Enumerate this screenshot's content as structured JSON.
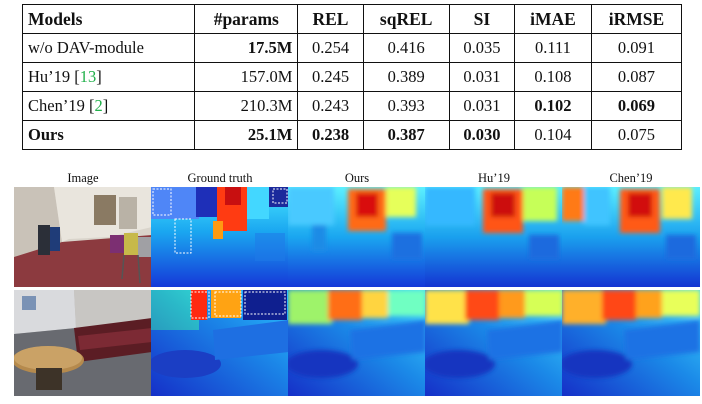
{
  "table": {
    "headers": [
      "Models",
      "#params",
      "REL",
      "sqREL",
      "SI",
      "iMAE",
      "iRMSE"
    ],
    "rows": [
      {
        "model": "w/o DAV-module",
        "cite": "",
        "params": "17.5M",
        "rel": "0.254",
        "sqrel": "0.416",
        "si": "0.035",
        "imae": "0.111",
        "irmse": "0.091"
      },
      {
        "model": "Hu’19 [",
        "cite": "13",
        "params": "157.0M",
        "rel": "0.245",
        "sqrel": "0.389",
        "si": "0.031",
        "imae": "0.108",
        "irmse": "0.087"
      },
      {
        "model": "Chen’19 [",
        "cite": "2",
        "params": "210.3M",
        "rel": "0.243",
        "sqrel": "0.393",
        "si": "0.031",
        "imae": "0.102",
        "irmse": "0.069"
      },
      {
        "model": "Ours",
        "cite": "",
        "params": "25.1M",
        "rel": "0.238",
        "sqrel": "0.387",
        "si": "0.030",
        "imae": "0.104",
        "irmse": "0.075"
      }
    ],
    "closing_bracket": "]"
  },
  "figure": {
    "columns": [
      "Image",
      "Ground truth",
      "Ours",
      "Hu’19",
      "Chen’19"
    ]
  },
  "colors": {
    "depth_near": "#1f3fd6",
    "depth_far": "#e01010",
    "cite": "#22b14c"
  }
}
